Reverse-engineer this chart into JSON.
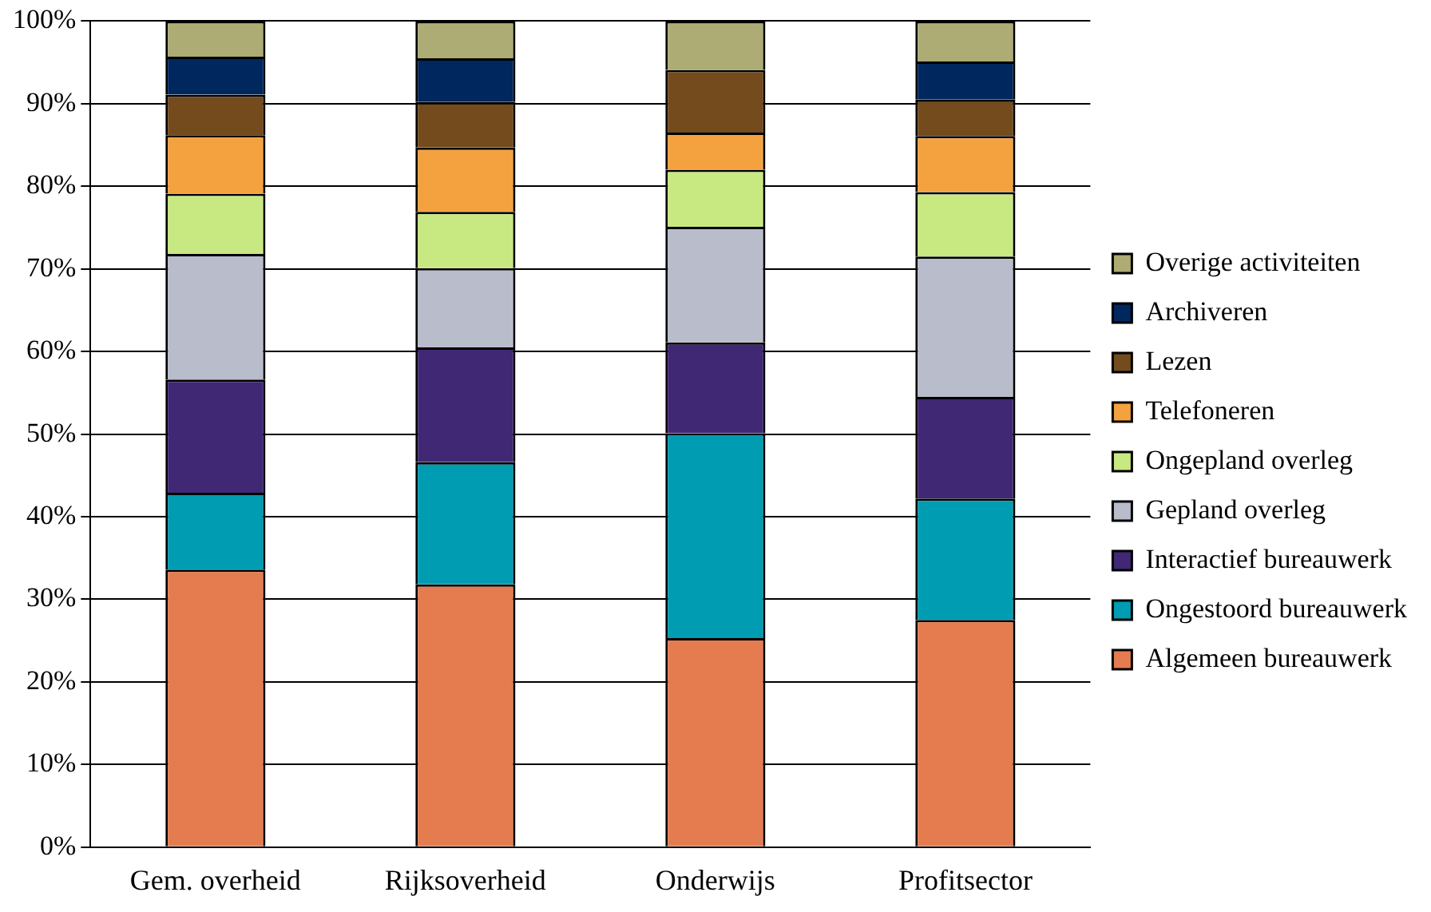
{
  "chart_data": {
    "type": "bar",
    "stacked": true,
    "categories": [
      "Gem. overheid",
      "Rijksoverheid",
      "Onderwijs",
      "Profitsector"
    ],
    "series": [
      {
        "name": "Algemeen bureauwerk",
        "color": "#e57c50",
        "values": [
          33.6,
          31.8,
          25.3,
          27.5
        ]
      },
      {
        "name": "Ongestoord bureauwerk",
        "color": "#009cb1",
        "values": [
          9.3,
          14.8,
          24.8,
          14.7
        ]
      },
      {
        "name": "Interactief bureauwerk",
        "color": "#402875",
        "values": [
          13.7,
          13.9,
          11.0,
          12.3
        ]
      },
      {
        "name": "Gepland overleg",
        "color": "#b9bcca",
        "values": [
          15.2,
          9.6,
          14.0,
          17.0
        ]
      },
      {
        "name": "Ongepland overleg",
        "color": "#c8e981",
        "values": [
          7.3,
          6.8,
          6.9,
          7.8
        ]
      },
      {
        "name": "Telefoneren",
        "color": "#f4a240",
        "values": [
          7.1,
          7.8,
          4.5,
          6.8
        ]
      },
      {
        "name": "Lezen",
        "color": "#734b1c",
        "values": [
          4.9,
          5.5,
          7.6,
          4.4
        ]
      },
      {
        "name": "Archiveren",
        "color": "#00275e",
        "values": [
          4.6,
          5.3,
          0,
          4.6
        ]
      },
      {
        "name": "Overige activiteiten",
        "color": "#acac74",
        "values": [
          4.3,
          4.5,
          5.9,
          4.9
        ]
      }
    ],
    "ylim": [
      0,
      100
    ],
    "yticks": [
      {
        "value": 0,
        "label": "0%"
      },
      {
        "value": 10,
        "label": "10%"
      },
      {
        "value": 20,
        "label": "20%"
      },
      {
        "value": 30,
        "label": "30%"
      },
      {
        "value": 40,
        "label": "40%"
      },
      {
        "value": 50,
        "label": "50%"
      },
      {
        "value": 60,
        "label": "60%"
      },
      {
        "value": 70,
        "label": "70%"
      },
      {
        "value": 80,
        "label": "80%"
      },
      {
        "value": 90,
        "label": "90%"
      },
      {
        "value": 100,
        "label": "100%"
      }
    ],
    "grid": "y",
    "legend": "right"
  }
}
